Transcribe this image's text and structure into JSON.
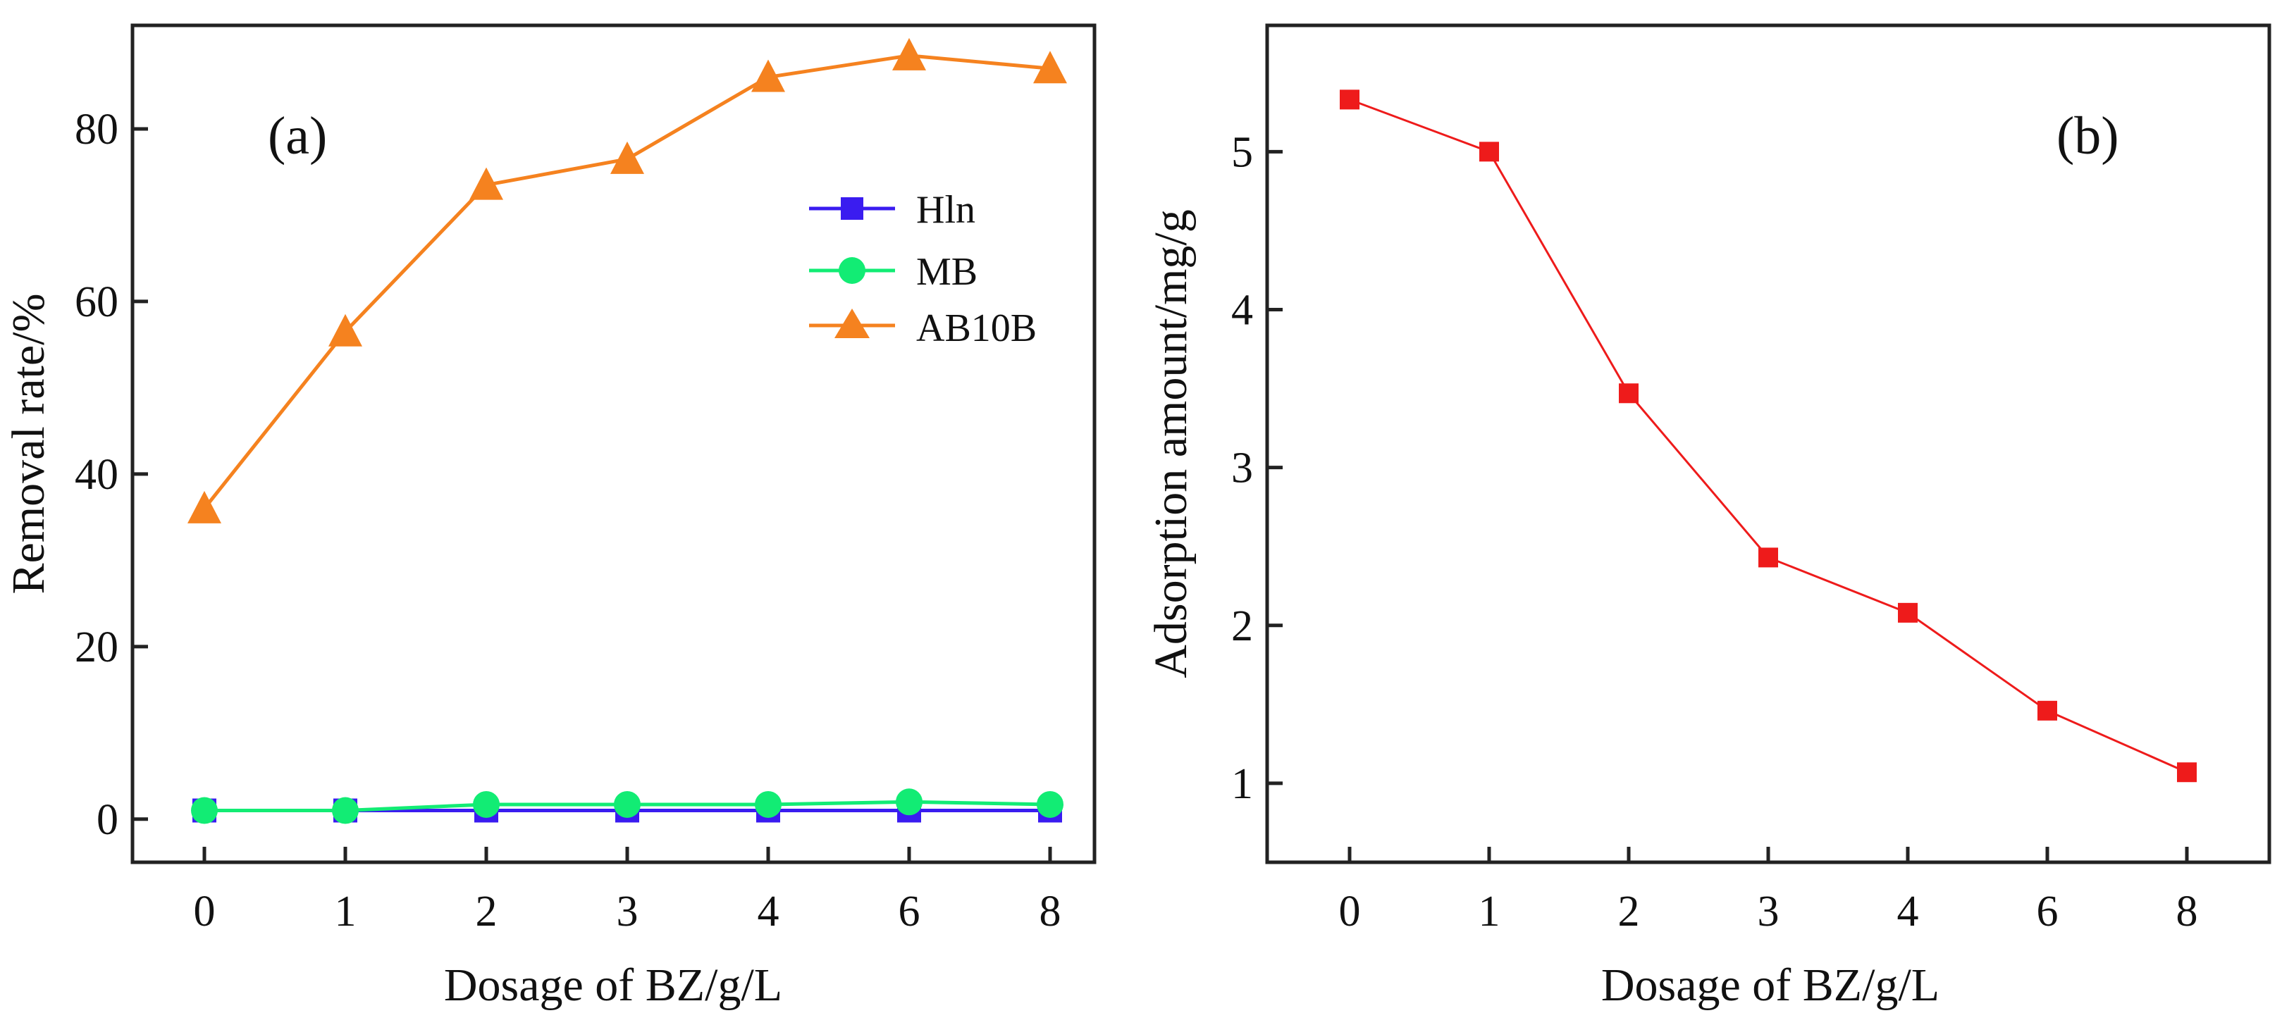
{
  "chart_data": [
    {
      "type": "line",
      "panel_label": "(a)",
      "title": "",
      "xlabel": "Dosage of BZ/g/L",
      "ylabel": "Removal rate/%",
      "categories": [
        "0",
        "1",
        "2",
        "3",
        "4",
        "6",
        "8"
      ],
      "ylim": [
        -5,
        92
      ],
      "yticks": [
        0,
        20,
        40,
        60,
        80
      ],
      "grid": false,
      "legend_position": "center-right",
      "series": [
        {
          "name": "Hln",
          "color": "#3a1cf0",
          "marker": "square",
          "values": [
            1,
            1,
            1,
            1,
            1,
            1,
            1
          ]
        },
        {
          "name": "MB",
          "color": "#12ec74",
          "marker": "circle",
          "values": [
            1,
            1,
            1.7,
            1.7,
            1.7,
            2,
            1.7
          ]
        },
        {
          "name": "AB10B",
          "color": "#f5821f",
          "marker": "triangle",
          "values": [
            36,
            56.5,
            73.5,
            76.5,
            86,
            88.5,
            87
          ]
        }
      ]
    },
    {
      "type": "line",
      "panel_label": "(b)",
      "title": "",
      "xlabel": "Dosage of BZ/g/L",
      "ylabel": "Adsorption amount/mg/g",
      "categories": [
        "0",
        "1",
        "2",
        "3",
        "4",
        "6",
        "8"
      ],
      "ylim": [
        0.5,
        5.8
      ],
      "yticks": [
        1,
        2,
        3,
        4,
        5
      ],
      "grid": false,
      "series": [
        {
          "name": "Adsorption amount",
          "color": "#ee1b1b",
          "marker": "square",
          "values": [
            5.33,
            5.0,
            3.47,
            2.43,
            2.08,
            1.46,
            1.07
          ]
        }
      ]
    }
  ]
}
